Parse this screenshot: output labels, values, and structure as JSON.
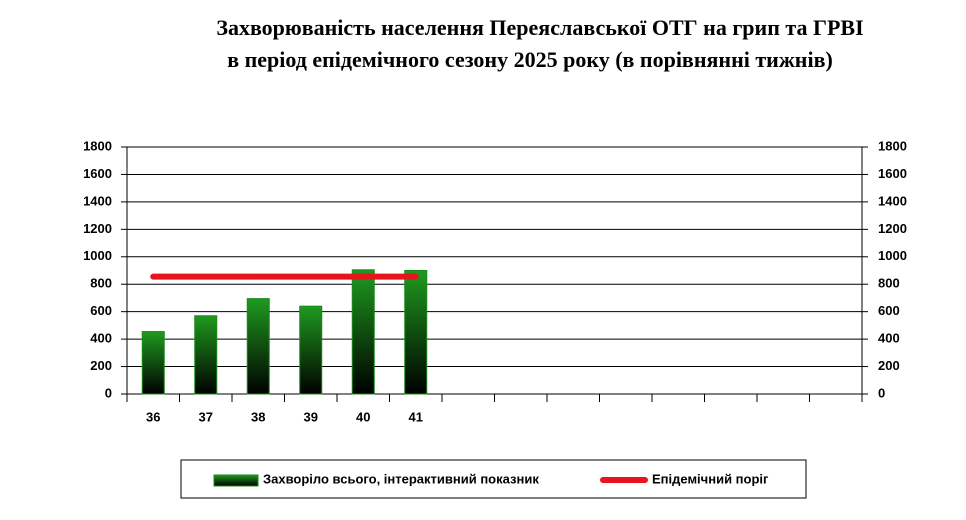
{
  "chart_data": {
    "type": "bar",
    "title": [
      "Захворюваність населення Переяславської ОТГ на грип та ГРВІ",
      "в період епідемічного сезону 2025 року (в порівнянні тижнів)"
    ],
    "categories": [
      "36",
      "37",
      "38",
      "39",
      "40",
      "41",
      null,
      null,
      null,
      null,
      null,
      null,
      null,
      null
    ],
    "series": [
      {
        "name": "Захворіло всього, інтерактивний показник",
        "type": "bar",
        "color": "#1a8a1a",
        "values": [
          455,
          570,
          695,
          640,
          905,
          900,
          null,
          null,
          null,
          null,
          null,
          null,
          null,
          null
        ]
      },
      {
        "name": "Епідемічний поріг",
        "type": "line",
        "color": "#e8141c",
        "values": [
          855,
          855,
          855,
          855,
          855,
          855,
          null,
          null,
          null,
          null,
          null,
          null,
          null,
          null
        ]
      }
    ],
    "ylim": [
      0,
      1800
    ],
    "yticks": [
      0,
      200,
      400,
      600,
      800,
      1000,
      1200,
      1400,
      1600,
      1800
    ],
    "y2lim": [
      0,
      1800
    ],
    "y2ticks": [
      0,
      200,
      400,
      600,
      800,
      1000,
      1200,
      1400,
      1600,
      1800
    ],
    "grid": true,
    "legend": "bottom"
  }
}
